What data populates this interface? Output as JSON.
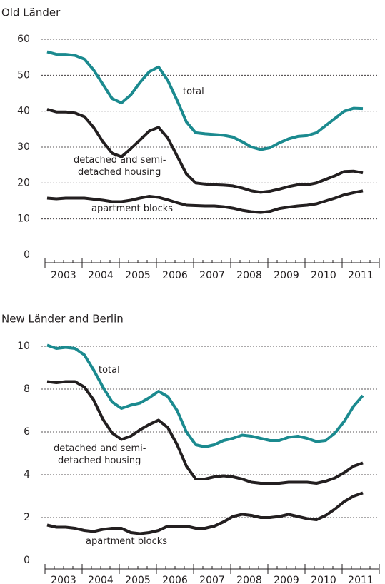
{
  "chart_data": [
    {
      "type": "line",
      "title": "Old Länder",
      "xlabels": [
        2003,
        2004,
        2005,
        2006,
        2007,
        2008,
        2009,
        2010,
        2011
      ],
      "ylim": [
        0,
        60
      ],
      "yticks": [
        0,
        10,
        20,
        30,
        40,
        50,
        60
      ],
      "grid": true,
      "series": [
        {
          "name": "total",
          "color": "#1b8a8f",
          "values": [
            56.5,
            55.8,
            55.8,
            55.5,
            54.5,
            51.5,
            47.5,
            43.5,
            42.3,
            44.5,
            48,
            51,
            52.3,
            48.5,
            43,
            37,
            34,
            33.7,
            33.5,
            33.3,
            32.8,
            31.5,
            30,
            29.3,
            29.8,
            31.2,
            32.3,
            33,
            33.2,
            34,
            36,
            38,
            40,
            40.8,
            40.7
          ]
        },
        {
          "name": "detached and semi-detached housing",
          "color": "#231f20",
          "values": [
            40.5,
            39.8,
            39.8,
            39.5,
            38.5,
            35.5,
            31.5,
            28.3,
            27.3,
            29.5,
            32,
            34.5,
            35.5,
            32.5,
            27.5,
            22.5,
            20,
            19.7,
            19.5,
            19.4,
            19.2,
            18.6,
            17.8,
            17.4,
            17.7,
            18.3,
            19,
            19.5,
            19.5,
            20,
            21,
            22,
            23.2,
            23.3,
            22.8
          ]
        },
        {
          "name": "apartment blocks",
          "color": "#231f20",
          "values": [
            15.8,
            15.6,
            15.8,
            15.8,
            15.8,
            15.5,
            15.2,
            14.8,
            14.8,
            15.2,
            15.8,
            16.3,
            16,
            15.3,
            14.5,
            13.8,
            13.7,
            13.6,
            13.6,
            13.4,
            13,
            12.4,
            12,
            11.8,
            12.1,
            12.9,
            13.3,
            13.6,
            13.8,
            14.2,
            15,
            15.8,
            16.7,
            17.3,
            17.8
          ]
        }
      ]
    },
    {
      "type": "line",
      "title": "New Länder and Berlin",
      "xlabels": [
        2003,
        2004,
        2005,
        2006,
        2007,
        2008,
        2009,
        2010,
        2011
      ],
      "ylim": [
        0,
        10
      ],
      "yticks": [
        0,
        2,
        4,
        6,
        8,
        10
      ],
      "grid": true,
      "series": [
        {
          "name": "total",
          "color": "#1b8a8f",
          "values": [
            10.05,
            9.9,
            9.95,
            9.9,
            9.6,
            8.9,
            8.1,
            7.4,
            7.1,
            7.25,
            7.35,
            7.6,
            7.9,
            7.65,
            7,
            6,
            5.4,
            5.3,
            5.4,
            5.6,
            5.7,
            5.85,
            5.8,
            5.7,
            5.6,
            5.6,
            5.75,
            5.8,
            5.7,
            5.55,
            5.6,
            5.95,
            6.5,
            7.2,
            7.7
          ]
        },
        {
          "name": "detached and semi-detached housing",
          "color": "#231f20",
          "values": [
            8.35,
            8.3,
            8.35,
            8.35,
            8.1,
            7.5,
            6.6,
            5.95,
            5.65,
            5.8,
            6.1,
            6.35,
            6.55,
            6.2,
            5.4,
            4.4,
            3.8,
            3.8,
            3.9,
            3.95,
            3.9,
            3.8,
            3.65,
            3.6,
            3.6,
            3.6,
            3.65,
            3.65,
            3.65,
            3.6,
            3.7,
            3.85,
            4.1,
            4.4,
            4.55
          ]
        },
        {
          "name": "apartment blocks",
          "color": "#231f20",
          "values": [
            1.65,
            1.55,
            1.55,
            1.5,
            1.4,
            1.35,
            1.45,
            1.5,
            1.5,
            1.3,
            1.25,
            1.3,
            1.4,
            1.6,
            1.6,
            1.6,
            1.5,
            1.5,
            1.6,
            1.8,
            2.05,
            2.15,
            2.1,
            2,
            2,
            2.05,
            2.15,
            2.05,
            1.95,
            1.9,
            2.1,
            2.4,
            2.75,
            3,
            3.15
          ]
        }
      ]
    }
  ]
}
